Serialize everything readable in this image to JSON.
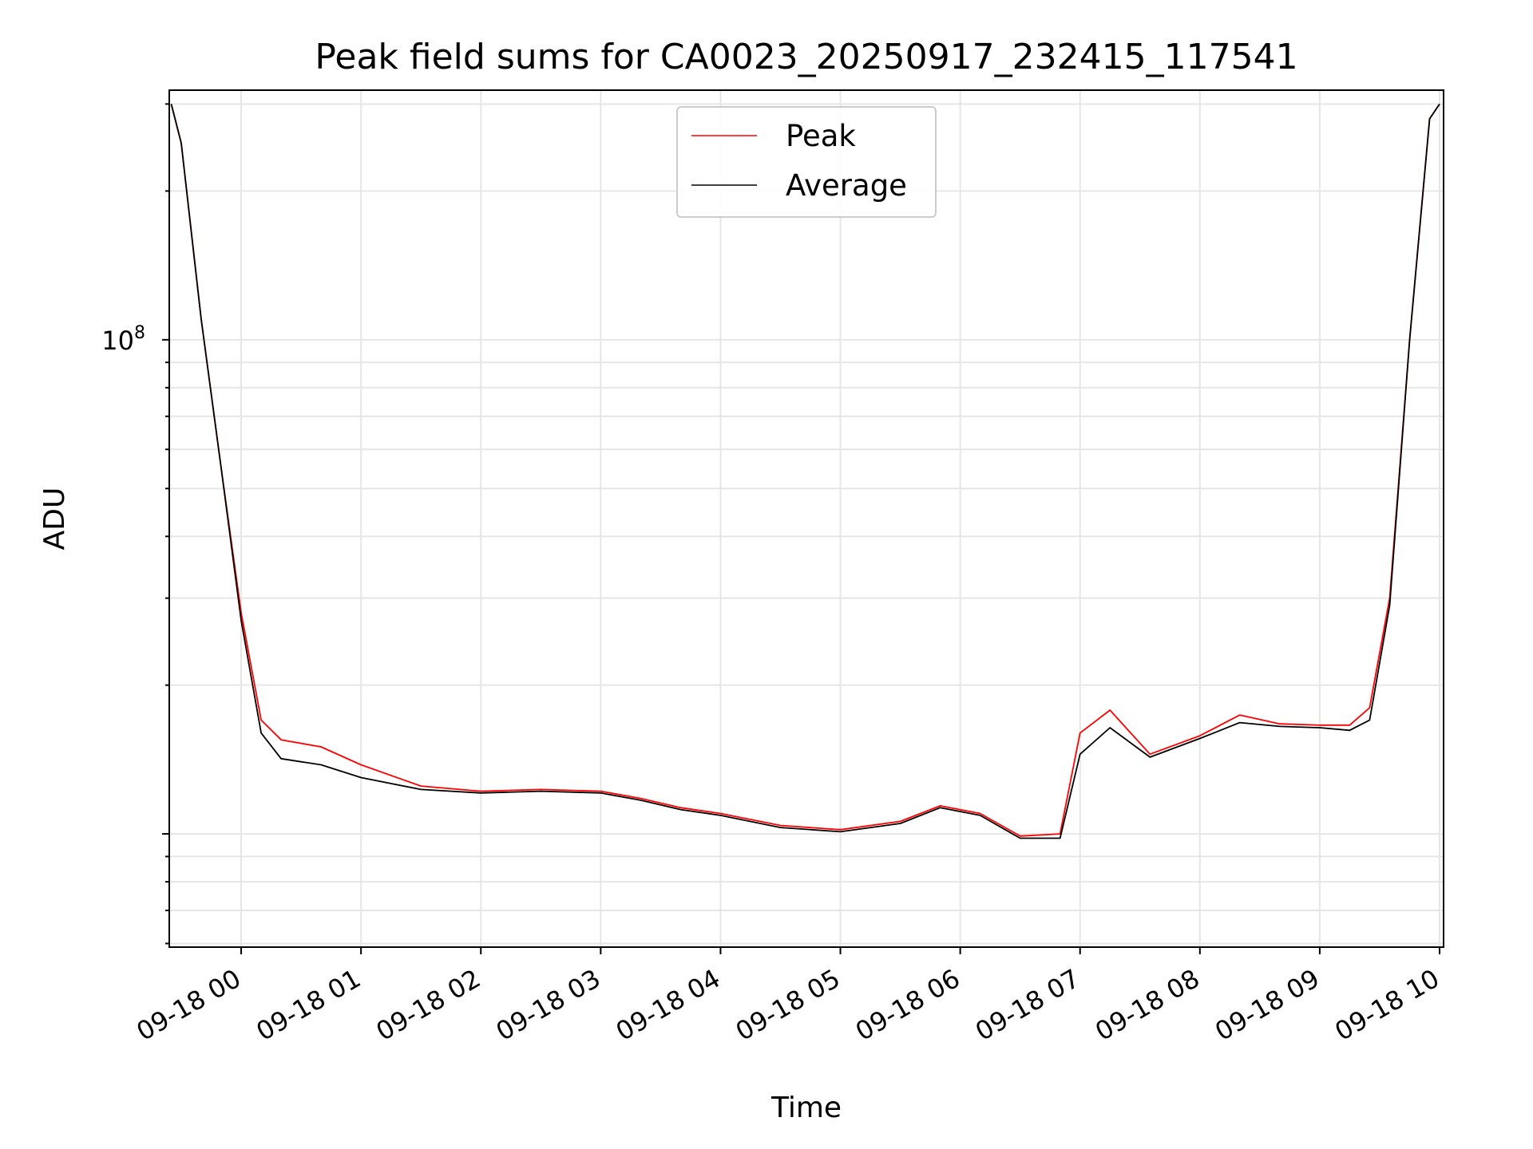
{
  "chart_data": {
    "type": "line",
    "title": "Peak field sums for CA0023_20250917_232415_117541",
    "xlabel": "Time",
    "ylabel": "ADU",
    "y_scale": "log",
    "grid": true,
    "legend_position": "upper center",
    "xlim": [
      "09-17 23:24",
      "09-18 10:02"
    ],
    "ylim": [
      5900000,
      320000000
    ],
    "x_tick_labels": [
      "09-18 00",
      "09-18 01",
      "09-18 02",
      "09-18 03",
      "09-18 04",
      "09-18 05",
      "09-18 06",
      "09-18 07",
      "09-18 08",
      "09-18 09",
      "09-18 10"
    ],
    "y_tick_labels": [
      {
        "base": "10",
        "exp": "8"
      }
    ],
    "series": [
      {
        "name": "Peak",
        "color": "#ff0000",
        "x": [
          "09-17 23:25",
          "09-17 23:30",
          "09-17 23:40",
          "09-17 23:50",
          "09-18 00:00",
          "09-18 00:10",
          "09-18 00:20",
          "09-18 00:40",
          "09-18 01:00",
          "09-18 01:30",
          "09-18 02:00",
          "09-18 02:30",
          "09-18 03:00",
          "09-18 03:20",
          "09-18 03:40",
          "09-18 04:00",
          "09-18 04:30",
          "09-18 05:00",
          "09-18 05:30",
          "09-18 05:50",
          "09-18 06:10",
          "09-18 06:30",
          "09-18 06:50",
          "09-18 07:00",
          "09-18 07:15",
          "09-18 07:35",
          "09-18 08:00",
          "09-18 08:20",
          "09-18 08:40",
          "09-18 09:00",
          "09-18 09:15",
          "09-18 09:25",
          "09-18 09:35",
          "09-18 09:45",
          "09-18 09:55",
          "09-18 10:00"
        ],
        "values": [
          300000000,
          250000000,
          110000000,
          55000000,
          28000000,
          17000000,
          15500000,
          15000000,
          13800000,
          12500000,
          12200000,
          12300000,
          12200000,
          11800000,
          11300000,
          11000000,
          10400000,
          10200000,
          10600000,
          11400000,
          11000000,
          9900000,
          10000000,
          16000000,
          17800000,
          14500000,
          15800000,
          17400000,
          16700000,
          16600000,
          16600000,
          18000000,
          30000000,
          100000000,
          280000000,
          300000000
        ]
      },
      {
        "name": "Average",
        "color": "#000000",
        "x": [
          "09-17 23:25",
          "09-17 23:30",
          "09-17 23:40",
          "09-17 23:50",
          "09-18 00:00",
          "09-18 00:10",
          "09-18 00:20",
          "09-18 00:40",
          "09-18 01:00",
          "09-18 01:30",
          "09-18 02:00",
          "09-18 02:30",
          "09-18 03:00",
          "09-18 03:20",
          "09-18 03:40",
          "09-18 04:00",
          "09-18 04:30",
          "09-18 05:00",
          "09-18 05:30",
          "09-18 05:50",
          "09-18 06:10",
          "09-18 06:30",
          "09-18 06:50",
          "09-18 07:00",
          "09-18 07:15",
          "09-18 07:35",
          "09-18 08:00",
          "09-18 08:20",
          "09-18 08:40",
          "09-18 09:00",
          "09-18 09:15",
          "09-18 09:25",
          "09-18 09:35",
          "09-18 09:45",
          "09-18 09:55",
          "09-18 10:00"
        ],
        "values": [
          300000000,
          250000000,
          110000000,
          55000000,
          27000000,
          16000000,
          14200000,
          13800000,
          13000000,
          12300000,
          12100000,
          12200000,
          12100000,
          11700000,
          11200000,
          10900000,
          10300000,
          10100000,
          10500000,
          11300000,
          10900000,
          9800000,
          9800000,
          14500000,
          16400000,
          14300000,
          15600000,
          16800000,
          16500000,
          16400000,
          16200000,
          17000000,
          29000000,
          100000000,
          280000000,
          300000000
        ]
      }
    ]
  }
}
